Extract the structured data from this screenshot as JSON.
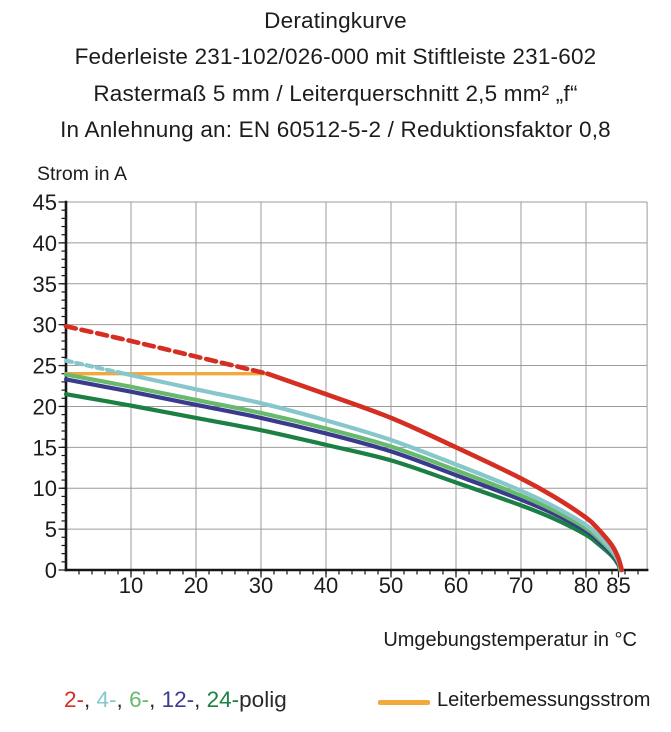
{
  "header": {
    "title": "Deratingkurve",
    "subtitle_lines": [
      "Federleiste 231-102/026-000 mit Stiftleiste 231-602",
      "Rastermaß 5 mm / Leiterquerschnitt 2,5 mm² „f“",
      "In Anlehnung an: EN 60512-5-2 / Reduktionsfaktor 0,8"
    ]
  },
  "legend": {
    "poles": [
      {
        "label": "2-",
        "color": "#d42f22"
      },
      {
        "label": "4-",
        "color": "#87c7cb"
      },
      {
        "label": "6-",
        "color": "#67b96b"
      },
      {
        "label": "12-",
        "color": "#3a3b8d"
      },
      {
        "label": "24-",
        "color": "#1c7f44"
      }
    ],
    "separator": ", ",
    "suffix": "polig",
    "rated_current": {
      "label": "Leiterbemessungsstrom",
      "color": "#f2a93c"
    }
  },
  "chart_data": {
    "type": "line",
    "title": "Deratingkurve",
    "xlabel": "Umgebungstemperatur in °C",
    "ylabel": "Strom in A",
    "xlim": [
      0,
      89.4
    ],
    "ylim": [
      0,
      45
    ],
    "x_major_ticks": [
      10,
      20,
      30,
      40,
      50,
      60,
      70,
      80,
      85
    ],
    "y_major_ticks": [
      0,
      5,
      10,
      15,
      20,
      25,
      30,
      35,
      40,
      45
    ],
    "x_minor_step": 2,
    "y_minor_step": 1,
    "grid": true,
    "grid_color": "#9b9b9b",
    "axis_color": "#161616",
    "legend_position": "bottom",
    "series": [
      {
        "name": "2-polig",
        "color": "#d42f22",
        "width": 4.6,
        "dash": "10 6",
        "points_dashed": [
          [
            0,
            29.8
          ],
          [
            10,
            28.0
          ],
          [
            20,
            26.1
          ],
          [
            31,
            24.0
          ]
        ],
        "points": [
          [
            31,
            24.0
          ],
          [
            40,
            21.5
          ],
          [
            50,
            18.6
          ],
          [
            60,
            15.0
          ],
          [
            70,
            11.2
          ],
          [
            75,
            9.0
          ],
          [
            80,
            6.4
          ],
          [
            82,
            4.9
          ],
          [
            84,
            3.0
          ],
          [
            85,
            1.4
          ],
          [
            85.5,
            0
          ]
        ]
      },
      {
        "name": "4-polig",
        "color": "#87c7cb",
        "width": 4.2,
        "dash": "6 4.5",
        "points_dashed": [
          [
            0,
            25.6
          ],
          [
            9,
            24.0
          ]
        ],
        "points": [
          [
            9,
            24.0
          ],
          [
            20,
            22.1
          ],
          [
            30,
            20.4
          ],
          [
            40,
            18.3
          ],
          [
            50,
            15.9
          ],
          [
            60,
            12.9
          ],
          [
            70,
            9.7
          ],
          [
            75,
            7.8
          ],
          [
            80,
            5.5
          ],
          [
            82,
            4.1
          ],
          [
            84,
            2.4
          ],
          [
            85,
            1.1
          ],
          [
            85.4,
            0
          ]
        ]
      },
      {
        "name": "6-polig",
        "color": "#67b96b",
        "width": 4.2,
        "points": [
          [
            0,
            23.9
          ],
          [
            10,
            22.4
          ],
          [
            20,
            20.8
          ],
          [
            30,
            19.2
          ],
          [
            40,
            17.3
          ],
          [
            50,
            15.1
          ],
          [
            60,
            12.2
          ],
          [
            70,
            9.1
          ],
          [
            75,
            7.3
          ],
          [
            80,
            5.1
          ],
          [
            82,
            3.8
          ],
          [
            84,
            2.2
          ],
          [
            85,
            1.0
          ],
          [
            85.3,
            0
          ]
        ]
      },
      {
        "name": "12-polig",
        "color": "#3a3b8d",
        "width": 4.2,
        "points": [
          [
            0,
            23.3
          ],
          [
            10,
            21.8
          ],
          [
            20,
            20.2
          ],
          [
            30,
            18.6
          ],
          [
            40,
            16.7
          ],
          [
            50,
            14.5
          ],
          [
            60,
            11.6
          ],
          [
            70,
            8.6
          ],
          [
            75,
            6.9
          ],
          [
            80,
            4.8
          ],
          [
            82,
            3.5
          ],
          [
            84,
            2.0
          ],
          [
            85,
            0.8
          ],
          [
            85.3,
            0
          ]
        ]
      },
      {
        "name": "24-polig",
        "color": "#1c7f44",
        "width": 4.2,
        "points": [
          [
            0,
            21.5
          ],
          [
            10,
            20.1
          ],
          [
            20,
            18.6
          ],
          [
            30,
            17.1
          ],
          [
            40,
            15.3
          ],
          [
            50,
            13.4
          ],
          [
            60,
            10.7
          ],
          [
            70,
            7.9
          ],
          [
            75,
            6.3
          ],
          [
            80,
            4.3
          ],
          [
            82,
            3.1
          ],
          [
            84,
            1.7
          ],
          [
            85,
            0.6
          ],
          [
            85.2,
            0
          ]
        ]
      },
      {
        "name": "Leiterbemessungsstrom",
        "color": "#f2a93c",
        "width": 3.4,
        "points": [
          [
            0,
            24
          ],
          [
            31,
            24
          ]
        ]
      }
    ]
  }
}
